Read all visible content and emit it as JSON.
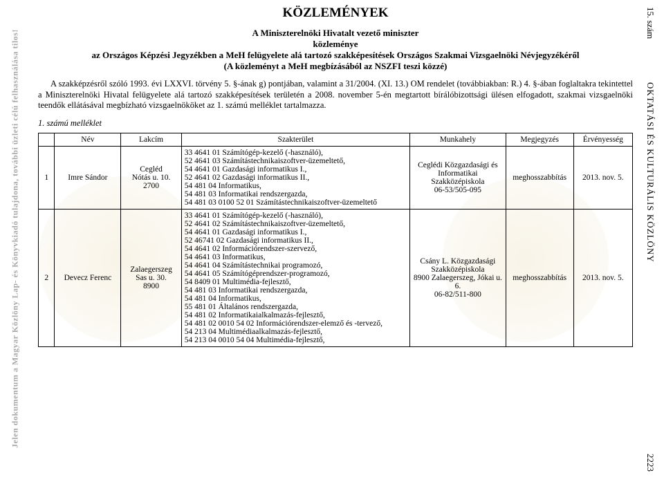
{
  "watermark_left": "Jelen dokumentum a Magyar Közlöny Lap- és Könyvkiadó tulajdona, további üzleti célú felhasználása tilos!",
  "side_right": {
    "issue": "15. szám",
    "journal": "OKTATÁSI ÉS KULTURÁLIS KÖZLÖNY",
    "pagenum": "2223"
  },
  "header": {
    "main_title": "KÖZLEMÉNYEK",
    "sub1": "A Miniszterelnöki Hivatalt vezető miniszter",
    "sub2": "közleménye",
    "sub3": "az Országos Képzési Jegyzékben a MeH felügyelete alá tartozó szakképesítések Országos Szakmai Vizsgaelnöki Névjegyzékéről",
    "sub4": "(A közleményt a MeH megbízásából az NSZFI teszi közzé)"
  },
  "body_text": "A szakképzésről szóló 1993. évi LXXVI. törvény 5. §-ának g) pontjában, valamint a 31/2004. (XI. 13.) OM rendelet (továbbiakban: R.) 4. §-ában foglaltakra tekintettel a Miniszterelnöki Hivatal felügyelete alá tartozó szakképesítések területén a 2008. november 5-én megtartott bírálóbizottsági ülésen elfogadott, szakmai vizsgaelnöki teendők ellátásával megbízható vizsgaelnököket az 1. számú melléklet tartalmazza.",
  "annex_label": "1. számú melléklet",
  "table": {
    "columns": [
      "",
      "Név",
      "Lakcím",
      "Szakterület",
      "Munkahely",
      "Megjegyzés",
      "Érvényesség"
    ],
    "rows": [
      {
        "num": "1",
        "nev": "Imre Sándor",
        "lakcim": "Cegléd\nNótás u. 10.\n2700",
        "szak": "33 4641 01 Számítógép-kezelő (-használó),\n52 4641 03 Számítástechnikaiszoftver-üzemeltető,\n54 4641 01 Gazdasági informatikus I.,\n52 4641 02 Gazdasági informatikus II.,\n54 481 04 Informatikus,\n54 481 03 Informatikai rendszergazda,\n54 481 03 0100 52 01 Számítástechnikaiszoftver-üzemeltető",
        "mh": "Ceglédi Közgazdasági és Informatikai Szakközépiskola\n06-53/505-095",
        "meg": "meghosszabbítás",
        "erv": "2013. nov. 5."
      },
      {
        "num": "2",
        "nev": "Devecz Ferenc",
        "lakcim": "Zalaegerszeg\nSas u. 30.\n8900",
        "szak": "33 4641 01 Számítógép-kezelő (-használó),\n52 4641 02 Számítástechnikaiszoftver-üzemeltető,\n54 4641 01 Gazdasági informatikus I.,\n52 46741 02 Gazdasági informatikus II.,\n54 4641 02 Információrendszer-szervező,\n54 4641 03 Informatikus,\n54 4641 04 Számítástechnikai programozó,\n54 4641 05 Számítógéprendszer-programozó,\n54 8409 01 Multimédia-fejlesztő,\n54 481 03 Informatikai rendszergazda,\n54 481 04 Informatikus,\n55 481 01 Általános rendszergazda,\n54 481 02 Informatikaialkalmazás-fejlesztő,\n54 481 02 0010 54 02 Információrendszer-elemző és -tervező,\n54 213 04 Multimédiaalkalmazás-fejlesztő,\n54 213 04 0010 54 04 Multimédia-fejlesztő,",
        "mh": "Csány L. Közgazdasági Szakközépiskola\n8900 Zalaegerszeg, Jókai u. 6.\n06-82/511-800",
        "meg": "meghosszabbítás",
        "erv": "2013. nov. 5."
      }
    ]
  }
}
